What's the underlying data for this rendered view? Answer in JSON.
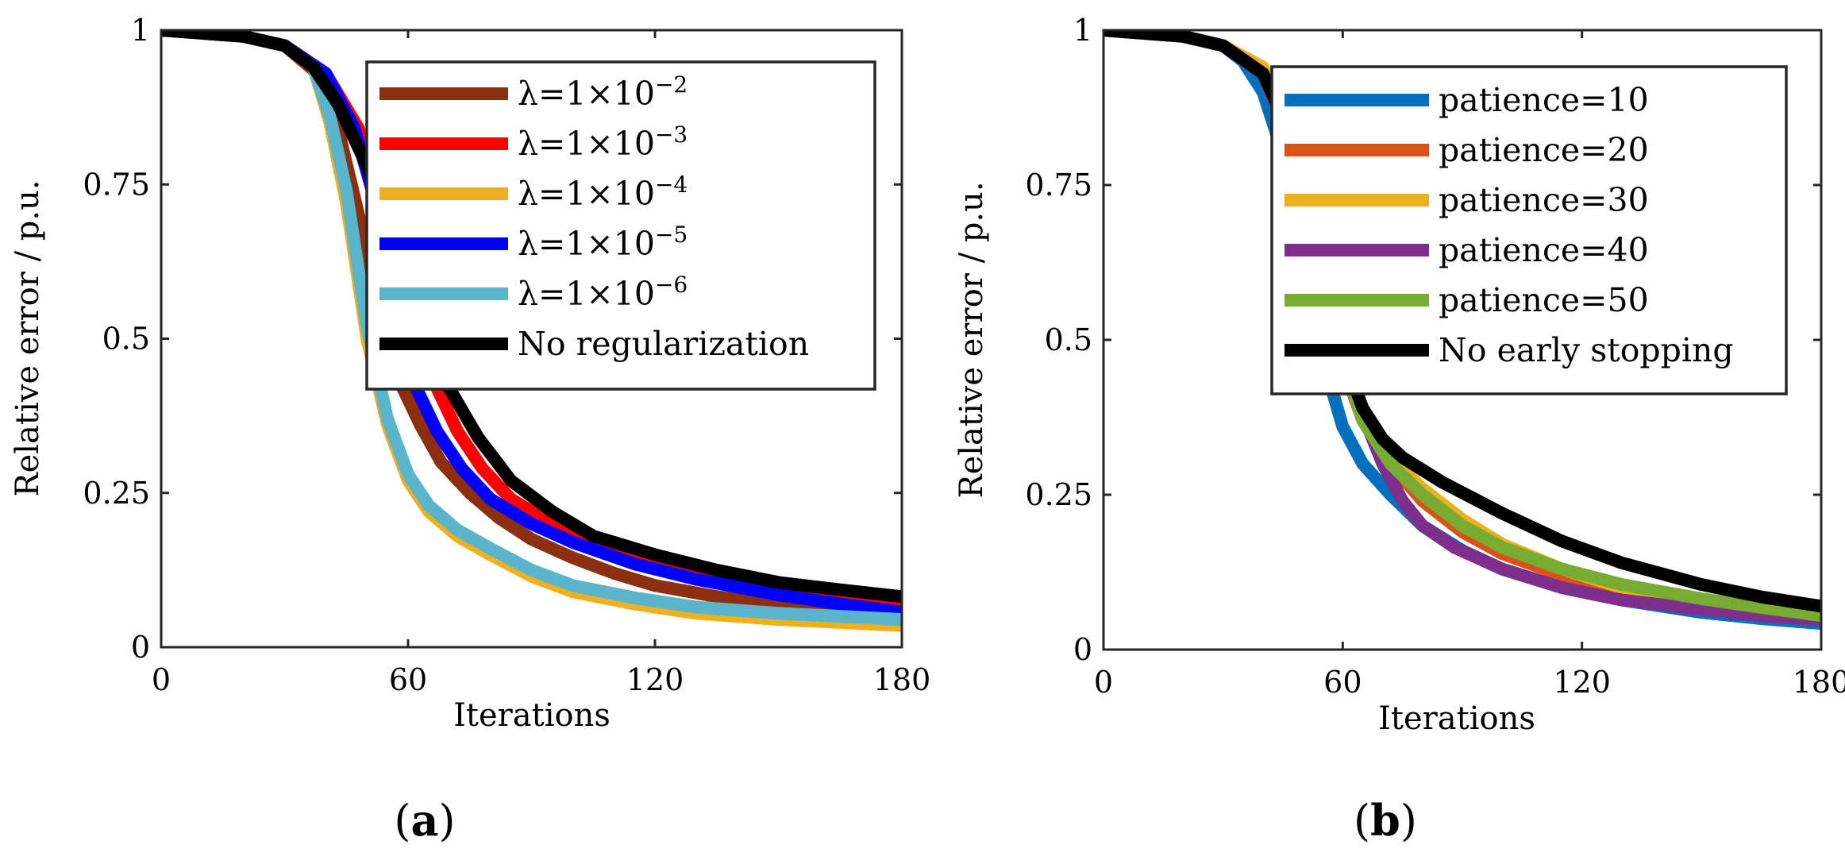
{
  "figure": {
    "captions": [
      "(a)",
      "(b)"
    ]
  },
  "chart_data": [
    {
      "type": "line",
      "panel": "a",
      "caption": "(a)",
      "xlabel": "Iterations",
      "ylabel": "Relative error / p.u.",
      "xlim": [
        0,
        180
      ],
      "ylim": [
        0,
        1
      ],
      "xticks": [
        0,
        60,
        120,
        180
      ],
      "yticks": [
        0,
        0.25,
        0.5,
        0.75,
        1
      ],
      "xtick_labels": [
        "0",
        "60",
        "120",
        "180"
      ],
      "ytick_labels": [
        "0",
        "0.25",
        "0.5",
        "0.75",
        "1"
      ],
      "legend_position": "top-right",
      "series": [
        {
          "name": "λ=1×10⁻²",
          "legend_main": "λ=1×10",
          "legend_exp": "−2",
          "color": "#8B2F0E",
          "x": [
            0,
            20,
            30,
            38,
            43,
            48,
            53,
            58,
            63,
            68,
            75,
            82,
            90,
            100,
            110,
            120,
            135,
            150,
            165,
            180
          ],
          "y": [
            1.0,
            0.99,
            0.975,
            0.93,
            0.84,
            0.7,
            0.55,
            0.43,
            0.36,
            0.3,
            0.25,
            0.21,
            0.175,
            0.145,
            0.12,
            0.1,
            0.082,
            0.068,
            0.058,
            0.05
          ]
        },
        {
          "name": "λ=1×10⁻³",
          "legend_main": "λ=1×10",
          "legend_exp": "−3",
          "color": "#FF0000",
          "x": [
            0,
            20,
            30,
            40,
            48,
            55,
            62,
            67,
            72,
            78,
            85,
            95,
            105,
            120,
            135,
            150,
            165,
            180
          ],
          "y": [
            1.0,
            0.99,
            0.975,
            0.93,
            0.84,
            0.7,
            0.52,
            0.42,
            0.35,
            0.29,
            0.24,
            0.2,
            0.17,
            0.14,
            0.115,
            0.095,
            0.08,
            0.065
          ]
        },
        {
          "name": "λ=1×10⁻⁴",
          "legend_main": "λ=1×10",
          "legend_exp": "−4",
          "color": "#EDB120",
          "x": [
            0,
            20,
            30,
            37,
            41,
            45,
            50,
            55,
            60,
            65,
            72,
            80,
            90,
            100,
            115,
            130,
            150,
            165,
            180
          ],
          "y": [
            1.0,
            0.99,
            0.975,
            0.94,
            0.85,
            0.72,
            0.5,
            0.36,
            0.27,
            0.22,
            0.18,
            0.15,
            0.115,
            0.09,
            0.07,
            0.055,
            0.045,
            0.04,
            0.035
          ]
        },
        {
          "name": "λ=1×10⁻⁵",
          "legend_main": "λ=1×10",
          "legend_exp": "−5",
          "color": "#0000FF",
          "x": [
            0,
            20,
            30,
            40,
            47,
            53,
            58,
            62,
            67,
            73,
            80,
            90,
            100,
            115,
            130,
            150,
            165,
            180
          ],
          "y": [
            1.0,
            0.99,
            0.975,
            0.93,
            0.84,
            0.7,
            0.52,
            0.42,
            0.35,
            0.29,
            0.24,
            0.2,
            0.17,
            0.135,
            0.11,
            0.085,
            0.07,
            0.057
          ]
        },
        {
          "name": "λ=1×10⁻⁶",
          "legend_main": "λ=1×10",
          "legend_exp": "−6",
          "color": "#5AB4CC",
          "x": [
            0,
            20,
            30,
            37,
            41,
            45,
            50,
            55,
            60,
            65,
            72,
            80,
            90,
            100,
            115,
            130,
            150,
            165,
            180
          ],
          "y": [
            1.0,
            0.99,
            0.975,
            0.94,
            0.86,
            0.74,
            0.52,
            0.37,
            0.28,
            0.23,
            0.19,
            0.16,
            0.125,
            0.1,
            0.08,
            0.065,
            0.055,
            0.05,
            0.045
          ]
        },
        {
          "name": "No regularization",
          "legend_main": "No regularization",
          "legend_exp": "",
          "color": "#000000",
          "x": [
            0,
            20,
            30,
            37,
            43,
            50,
            57,
            63,
            70,
            77,
            85,
            95,
            105,
            120,
            135,
            150,
            165,
            180
          ],
          "y": [
            1.0,
            0.99,
            0.975,
            0.94,
            0.88,
            0.78,
            0.65,
            0.53,
            0.42,
            0.34,
            0.27,
            0.22,
            0.18,
            0.15,
            0.125,
            0.105,
            0.093,
            0.082
          ]
        }
      ]
    },
    {
      "type": "line",
      "panel": "b",
      "caption": "(b)",
      "xlabel": "Iterations",
      "ylabel": "Relative error / p.u.",
      "xlim": [
        0,
        180
      ],
      "ylim": [
        0,
        1
      ],
      "xticks": [
        0,
        60,
        120,
        180
      ],
      "yticks": [
        0,
        0.25,
        0.5,
        0.75,
        1
      ],
      "xtick_labels": [
        "0",
        "60",
        "120",
        "180"
      ],
      "ytick_labels": [
        "0",
        "0.25",
        "0.5",
        "0.75",
        "1"
      ],
      "legend_position": "top-right",
      "series": [
        {
          "name": "patience=10",
          "legend_main": "patience=10",
          "legend_exp": "",
          "color": "#0072BD",
          "x": [
            0,
            20,
            30,
            35,
            40,
            45,
            50,
            55,
            60,
            65,
            72,
            80,
            90,
            100,
            115,
            130,
            150,
            165,
            180
          ],
          "y": [
            1.0,
            0.99,
            0.975,
            0.95,
            0.9,
            0.8,
            0.62,
            0.47,
            0.36,
            0.3,
            0.25,
            0.2,
            0.16,
            0.13,
            0.1,
            0.08,
            0.06,
            0.05,
            0.042
          ]
        },
        {
          "name": "patience=20",
          "legend_main": "patience=20",
          "legend_exp": "",
          "color": "#D95319",
          "x": [
            0,
            20,
            30,
            40,
            45,
            50,
            55,
            60,
            65,
            72,
            80,
            90,
            100,
            115,
            130,
            150,
            165,
            180
          ],
          "y": [
            1.0,
            0.99,
            0.975,
            0.93,
            0.85,
            0.72,
            0.6,
            0.46,
            0.37,
            0.3,
            0.24,
            0.19,
            0.155,
            0.12,
            0.095,
            0.075,
            0.062,
            0.052
          ]
        },
        {
          "name": "patience=30",
          "legend_main": "patience=30",
          "legend_exp": "",
          "color": "#EDB120",
          "x": [
            0,
            20,
            30,
            40,
            45,
            50,
            55,
            60,
            65,
            72,
            80,
            90,
            100,
            115,
            130,
            150,
            165,
            180
          ],
          "y": [
            1.0,
            0.99,
            0.975,
            0.94,
            0.87,
            0.75,
            0.62,
            0.48,
            0.38,
            0.31,
            0.26,
            0.21,
            0.17,
            0.13,
            0.1,
            0.08,
            0.065,
            0.055
          ]
        },
        {
          "name": "patience=40",
          "legend_main": "patience=40",
          "legend_exp": "",
          "color": "#7E2F8E",
          "x": [
            0,
            20,
            30,
            40,
            45,
            50,
            55,
            60,
            65,
            70,
            75,
            80,
            88,
            100,
            115,
            130,
            150,
            165,
            180
          ],
          "y": [
            1.0,
            0.99,
            0.975,
            0.93,
            0.85,
            0.72,
            0.6,
            0.47,
            0.38,
            0.3,
            0.24,
            0.2,
            0.165,
            0.13,
            0.1,
            0.08,
            0.065,
            0.055,
            0.048
          ]
        },
        {
          "name": "patience=50",
          "legend_main": "patience=50",
          "legend_exp": "",
          "color": "#77AC30",
          "x": [
            0,
            20,
            30,
            40,
            45,
            50,
            55,
            60,
            65,
            72,
            80,
            90,
            100,
            115,
            130,
            150,
            165,
            180
          ],
          "y": [
            1.0,
            0.99,
            0.975,
            0.93,
            0.86,
            0.73,
            0.6,
            0.47,
            0.37,
            0.3,
            0.25,
            0.2,
            0.165,
            0.13,
            0.105,
            0.082,
            0.068,
            0.055
          ]
        },
        {
          "name": "No early stopping",
          "legend_main": "No early stopping",
          "legend_exp": "",
          "color": "#000000",
          "x": [
            0,
            20,
            30,
            40,
            45,
            50,
            55,
            60,
            65,
            70,
            75,
            85,
            100,
            115,
            130,
            150,
            165,
            180
          ],
          "y": [
            1.0,
            0.99,
            0.975,
            0.93,
            0.86,
            0.74,
            0.6,
            0.48,
            0.39,
            0.34,
            0.31,
            0.27,
            0.22,
            0.175,
            0.14,
            0.105,
            0.085,
            0.07
          ]
        }
      ]
    }
  ]
}
